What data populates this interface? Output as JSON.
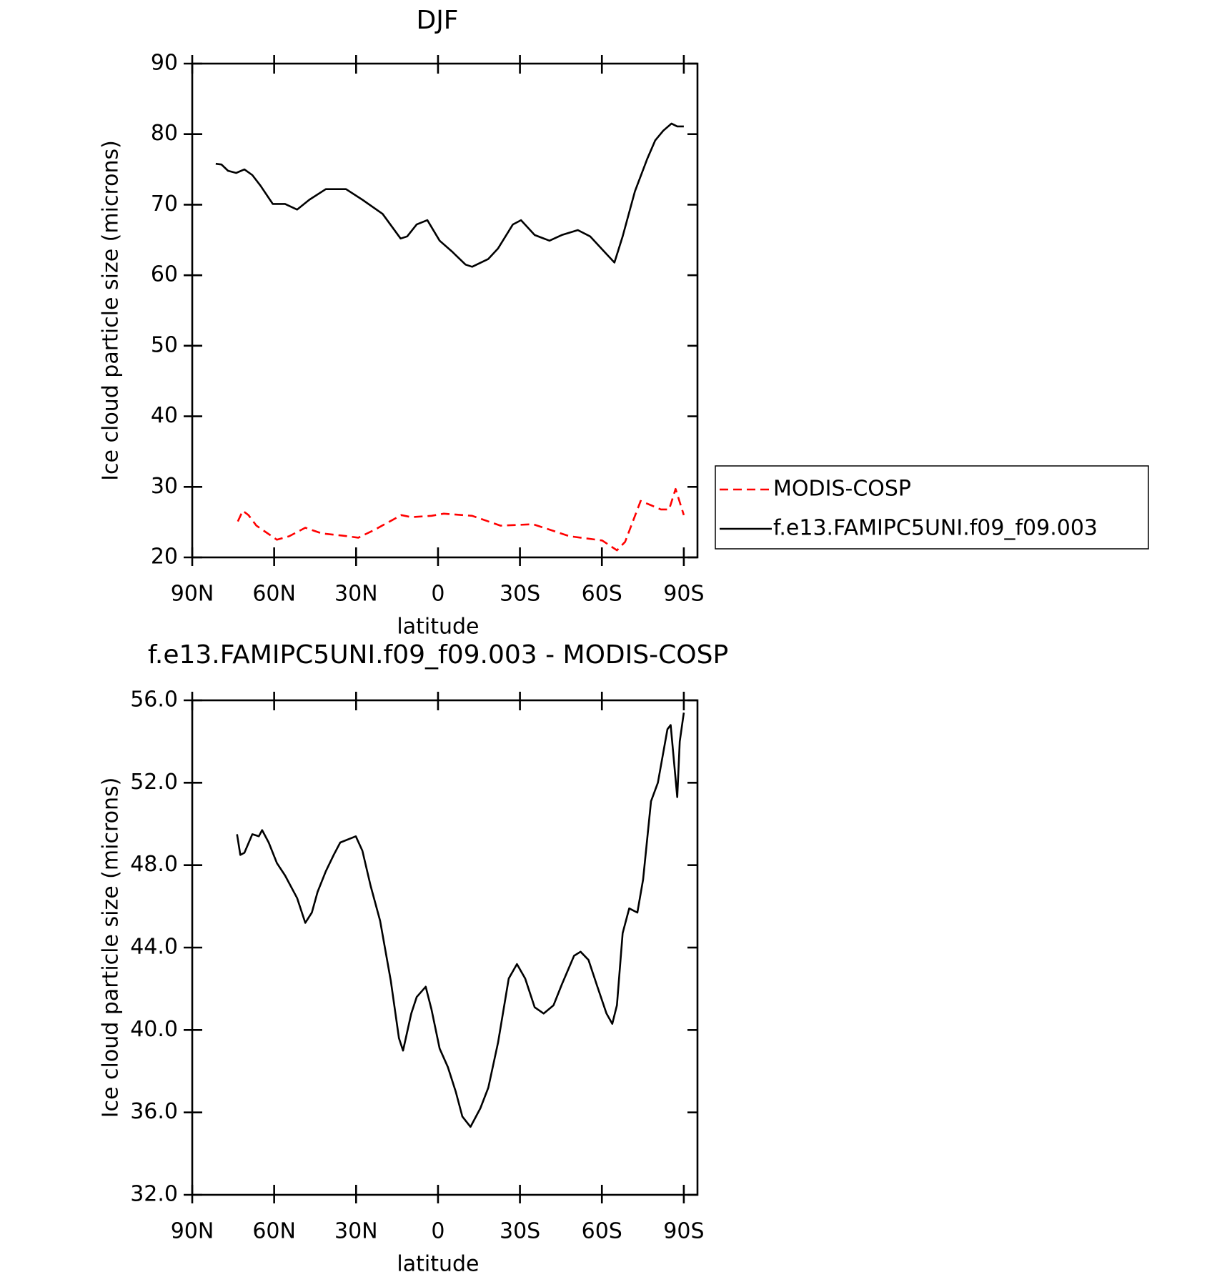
{
  "chart_data": [
    {
      "type": "line",
      "title": "DJF",
      "xlabel": "latitude",
      "ylabel": "Ice cloud particle size (microns)",
      "xlim": [
        90,
        -95
      ],
      "ylim": [
        20,
        90
      ],
      "xticks": [
        {
          "value": 90,
          "label": "90N"
        },
        {
          "value": 60,
          "label": "60N"
        },
        {
          "value": 30,
          "label": "30N"
        },
        0,
        {
          "value": -30,
          "label": "30S"
        },
        {
          "value": -60,
          "label": "60S"
        },
        {
          "value": -90,
          "label": "90S"
        }
      ],
      "yticks": [
        20,
        30,
        40,
        50,
        60,
        70,
        80,
        90
      ],
      "legend": "outside-right",
      "series": [
        {
          "name": "MODIS-COSP",
          "color": "#ff0000",
          "line_style": "dashed",
          "x": [
            73.3,
            71.5,
            69.4,
            66.5,
            63.5,
            59.0,
            54.5,
            48.6,
            42.6,
            35.2,
            29.2,
            23.3,
            13.4,
            9.8,
            2.4,
            -2.1,
            -12.5,
            -22.9,
            -34.8,
            -48.2,
            -60.1,
            -65.5,
            -68.5,
            -74.2,
            -78.0,
            -81.6,
            -84.6,
            -87.0,
            -90
          ],
          "values": [
            25.1,
            26.6,
            26.0,
            24.5,
            23.7,
            22.5,
            23.0,
            24.2,
            23.4,
            23.1,
            22.8,
            23.9,
            26.0,
            25.7,
            25.9,
            26.2,
            25.9,
            24.5,
            24.7,
            23.0,
            22.4,
            21.0,
            22.2,
            28.0,
            27.4,
            26.8,
            26.8,
            29.7,
            26.0
          ]
        },
        {
          "name": "f.e13.FAMIPC5UNI.f09_f09.003",
          "color": "#000000",
          "line_style": "solid",
          "x": [
            81.4,
            79.3,
            76.9,
            73.9,
            70.9,
            68,
            65,
            60.5,
            56,
            51.6,
            47.1,
            41.1,
            33.7,
            27.7,
            20.3,
            13.7,
            11.3,
            7.8,
            3.9,
            -0.6,
            -5.0,
            -10.1,
            -12.5,
            -18.4,
            -22.0,
            -27.4,
            -30.4,
            -35.4,
            -40.8,
            -45.3,
            -51.2,
            -55.7,
            -61.7,
            -64.6,
            -67.6,
            -72.1,
            -76.6,
            -79.5,
            -82.5,
            -85.5,
            -87.6,
            -90
          ],
          "values": [
            75.8,
            75.7,
            74.8,
            74.5,
            75.0,
            74.2,
            72.7,
            70.1,
            70.1,
            69.3,
            70.7,
            72.2,
            72.2,
            70.7,
            68.7,
            65.2,
            65.5,
            67.2,
            67.8,
            64.9,
            63.4,
            61.5,
            61.2,
            62.3,
            63.8,
            67.2,
            67.8,
            65.7,
            64.9,
            65.7,
            66.4,
            65.5,
            63.0,
            61.8,
            65.5,
            71.9,
            76.5,
            79.1,
            80.5,
            81.5,
            81.1,
            81.1
          ]
        }
      ]
    },
    {
      "type": "line",
      "title": "f.e13.FAMIPC5UNI.f09_f09.003 - MODIS-COSP",
      "xlabel": "latitude",
      "ylabel": "Ice cloud particle size (microns)",
      "xlim": [
        90,
        -95
      ],
      "ylim": [
        32,
        56
      ],
      "xticks": [
        {
          "value": 90,
          "label": "90N"
        },
        {
          "value": 60,
          "label": "60N"
        },
        {
          "value": 30,
          "label": "30N"
        },
        0,
        {
          "value": -30,
          "label": "30S"
        },
        {
          "value": -60,
          "label": "60S"
        },
        {
          "value": -90,
          "label": "90S"
        }
      ],
      "yticks": [
        {
          "value": 32,
          "label": "32.0"
        },
        {
          "value": 36,
          "label": "36.0"
        },
        {
          "value": 40,
          "label": "40.0"
        },
        {
          "value": 44,
          "label": "44.0"
        },
        {
          "value": 48,
          "label": "48.0"
        },
        {
          "value": 52,
          "label": "52.0"
        },
        {
          "value": 56,
          "label": "56.0"
        }
      ],
      "series": [
        {
          "color": "#000000",
          "line_style": "solid",
          "x": [
            73.6,
            72.4,
            70.9,
            68.0,
            65.6,
            64.4,
            62.0,
            59.0,
            56.0,
            51.6,
            48.6,
            46.2,
            44.1,
            41.1,
            38.2,
            35.8,
            30.1,
            27.7,
            24.7,
            21.2,
            17.3,
            14.3,
            12.8,
            9.8,
            7.8,
            4.5,
            2.4,
            -0.6,
            -3.6,
            -6.5,
            -8.9,
            -11.9,
            -15.5,
            -18.4,
            -22.0,
            -25.9,
            -28.9,
            -31.9,
            -35.4,
            -38.7,
            -42.3,
            -45.3,
            -49.8,
            -52.2,
            -55.1,
            -58.1,
            -61.7,
            -63.8,
            -65.5,
            -67.6,
            -70.0,
            -73.0,
            -75.1,
            -78.0,
            -80.5,
            -84.0,
            -85.2,
            -87.6,
            -88.5,
            -90
          ],
          "values": [
            49.5,
            48.5,
            48.6,
            49.5,
            49.4,
            49.7,
            49.1,
            48.1,
            47.5,
            46.4,
            45.2,
            45.7,
            46.7,
            47.7,
            48.5,
            49.1,
            49.4,
            48.7,
            47.0,
            45.3,
            42.4,
            39.6,
            39.0,
            40.8,
            41.6,
            42.1,
            41.0,
            39.1,
            38.2,
            37.0,
            35.8,
            35.3,
            36.2,
            37.2,
            39.4,
            42.5,
            43.2,
            42.5,
            41.1,
            40.8,
            41.2,
            42.2,
            43.6,
            43.8,
            43.4,
            42.2,
            40.8,
            40.3,
            41.2,
            44.7,
            45.9,
            45.7,
            47.3,
            51.1,
            52.0,
            54.6,
            54.8,
            51.3,
            54.0,
            55.4
          ]
        }
      ]
    }
  ]
}
